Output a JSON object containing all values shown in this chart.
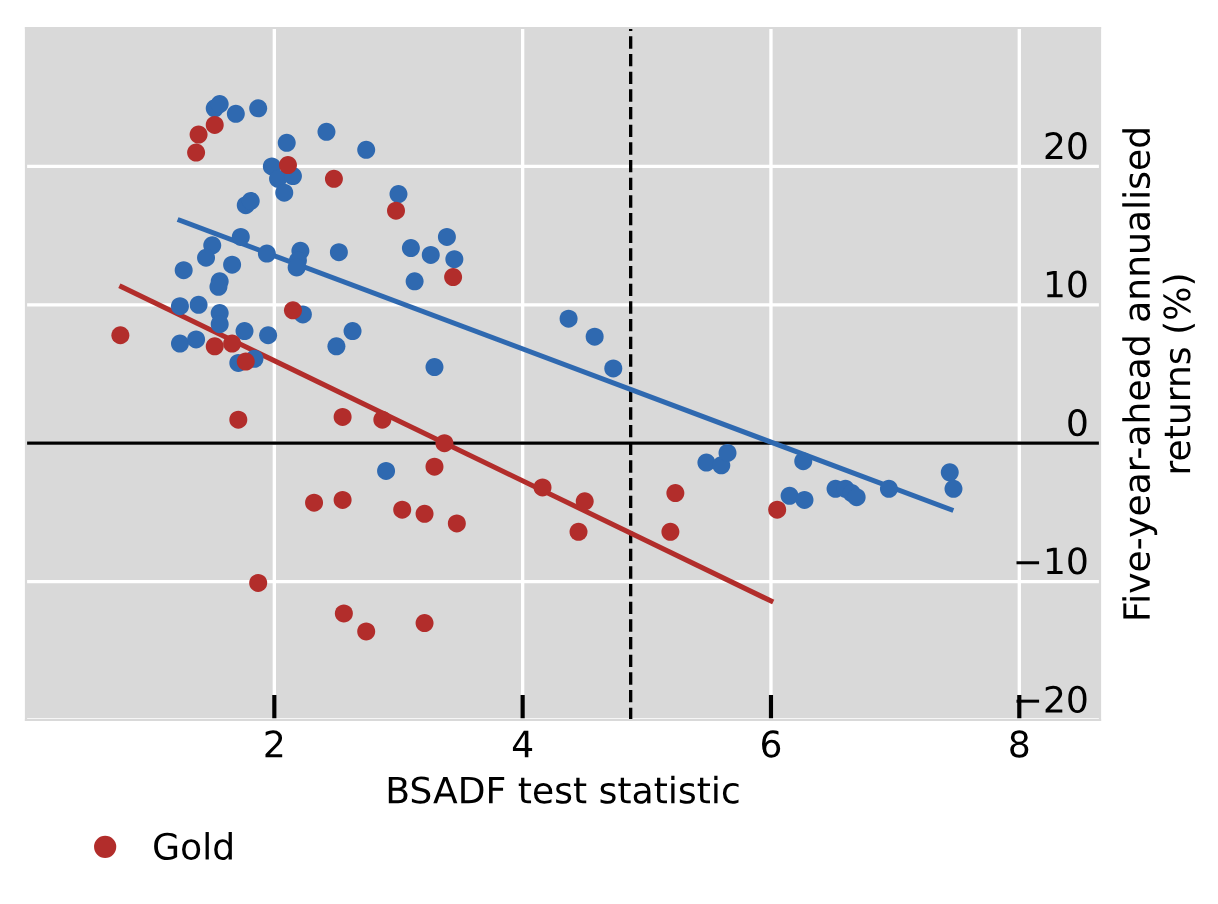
{
  "chart_data": {
    "type": "scatter",
    "xlabel": "BSADF test statistic",
    "ylabel": "Five-year-ahead annualised\nreturns (%)",
    "xlim": [
      0,
      8.65
    ],
    "ylim": [
      -20,
      30
    ],
    "xticks": [
      2,
      4,
      6,
      8
    ],
    "yticks": [
      -20,
      -10,
      0,
      10,
      20
    ],
    "grid": true,
    "legend": "bottom left",
    "ref_lines": [
      {
        "axis": "y",
        "value": 0,
        "color": "#000000",
        "line_style": "solid"
      },
      {
        "axis": "x",
        "value": 4.87,
        "color": "#000000",
        "line_style": "dashed"
      }
    ],
    "series": [
      {
        "name": "Gold",
        "color": "#b22d2b",
        "marker": "circle",
        "x": [
          1.39,
          1.52,
          1.37,
          2.11,
          2.48,
          2.98,
          3.44,
          0.76,
          2.15,
          1.52,
          1.66,
          1.77,
          1.71,
          2.55,
          2.87,
          3.37,
          3.29,
          2.32,
          2.55,
          3.03,
          3.21,
          3.47,
          4.16,
          4.5,
          4.45,
          1.87,
          2.56,
          2.74,
          3.21,
          5.23,
          5.19,
          6.05
        ],
        "values": [
          22.3,
          23.0,
          21.0,
          20.1,
          19.1,
          16.8,
          12.0,
          7.8,
          9.6,
          7.0,
          7.2,
          5.9,
          1.7,
          1.9,
          1.7,
          0,
          -1.7,
          -4.3,
          -4.1,
          -4.8,
          -5.1,
          -5.8,
          -3.2,
          -4.2,
          -6.4,
          -10.1,
          -12.3,
          -13.6,
          -13.0,
          -3.6,
          -6.4,
          -4.8
        ]
      },
      {
        "color": "#2f69b0",
        "marker": "circle",
        "x": [
          1.52,
          1.56,
          1.69,
          1.87,
          2.1,
          2.42,
          2.74,
          1.98,
          2.03,
          2.15,
          2.08,
          1.77,
          1.81,
          3.0,
          1.73,
          1.5,
          1.45,
          1.27,
          1.66,
          1.94,
          2.21,
          2.19,
          2.18,
          2.52,
          3.1,
          3.26,
          3.39,
          3.45,
          3.13,
          1.56,
          1.55,
          1.24,
          1.39,
          1.56,
          2.23,
          1.56,
          1.76,
          1.95,
          1.24,
          1.37,
          1.71,
          1.84,
          2.63,
          2.5,
          3.29,
          4.37,
          4.58,
          2.9,
          4.73,
          5.48,
          5.6,
          5.65,
          6.26,
          6.15,
          6.27,
          6.52,
          6.6,
          6.65,
          6.69,
          6.95,
          7.44,
          7.47
        ],
        "values": [
          24.2,
          24.5,
          23.8,
          24.2,
          21.7,
          22.5,
          21.2,
          20.0,
          19.1,
          19.3,
          18.1,
          17.2,
          17.5,
          18.0,
          14.9,
          14.3,
          13.4,
          12.5,
          12.9,
          13.7,
          13.9,
          13.2,
          12.7,
          13.8,
          14.1,
          13.6,
          14.9,
          13.3,
          11.7,
          11.7,
          11.3,
          9.9,
          10.0,
          9.4,
          9.3,
          8.6,
          8.1,
          7.8,
          7.2,
          7.5,
          5.8,
          6.1,
          8.1,
          7.0,
          5.5,
          9.0,
          7.7,
          -2.0,
          5.4,
          -1.4,
          -1.6,
          -0.7,
          -1.3,
          -3.8,
          -4.1,
          -3.3,
          -3.3,
          -3.6,
          -3.9,
          -3.3,
          -2.1,
          -3.3
        ]
      },
      {
        "type": "line",
        "marker": "none",
        "color": "#b22d2b",
        "x": [
          0.77,
          6.0
        ],
        "values": [
          11.3,
          -11.4
        ]
      },
      {
        "type": "line",
        "marker": "none",
        "color": "#2f69b0",
        "x": [
          1.24,
          7.45
        ],
        "values": [
          16.1,
          -4.8
        ]
      }
    ]
  }
}
